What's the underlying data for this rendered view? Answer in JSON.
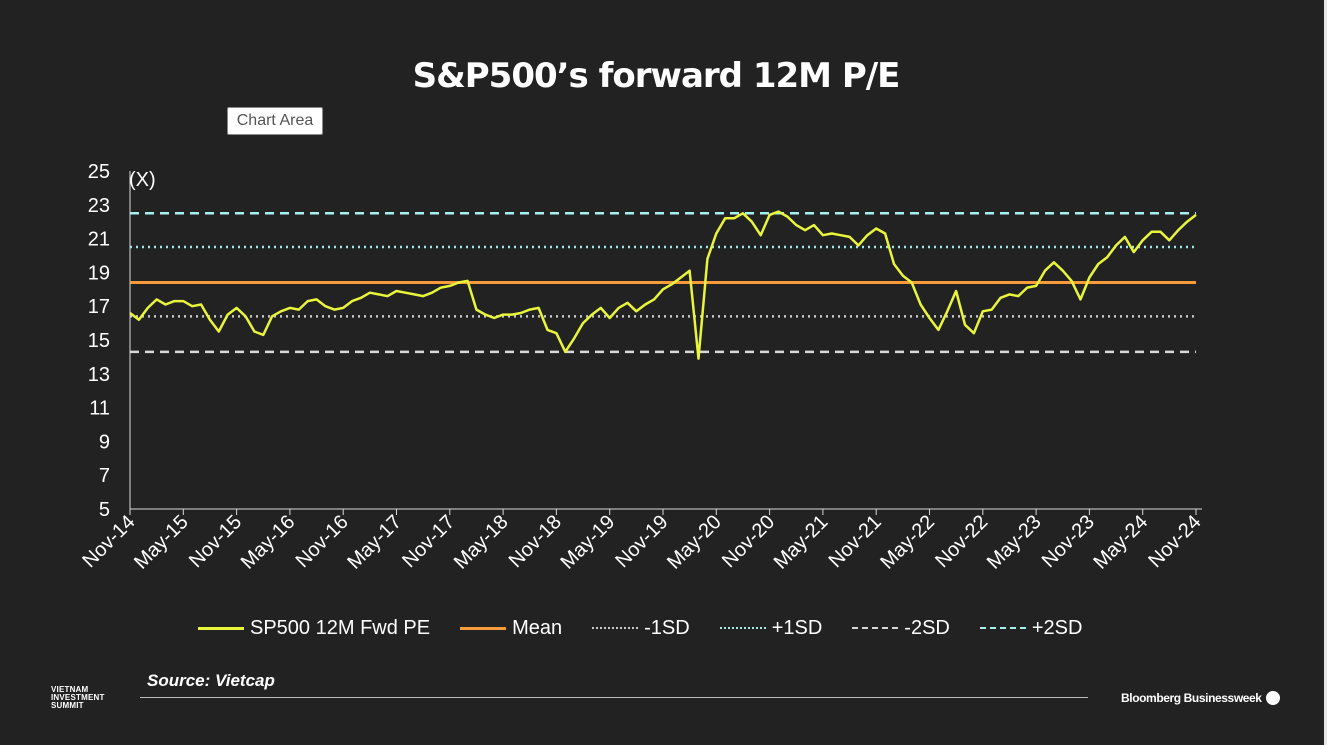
{
  "title": "S&P500’s forward 12M P/E",
  "tooltip": "Chart Area",
  "source": "Source: Vietcap",
  "footer": {
    "left_logo_lines": [
      "VIETNAM",
      "INVESTMENT",
      "SUMMIT"
    ],
    "right_logo": "Bloomberg Businessweek"
  },
  "chart_data": {
    "type": "line",
    "ylabel": "(X)",
    "ylim": [
      5,
      25
    ],
    "yticks": [
      25,
      23,
      21,
      19,
      17,
      15,
      13,
      11,
      9,
      7,
      5
    ],
    "xrange": [
      "2014-11",
      "2024-11"
    ],
    "xtick_labels": [
      "Nov-14",
      "May-15",
      "Nov-15",
      "May-16",
      "Nov-16",
      "May-17",
      "Nov-17",
      "May-18",
      "Nov-18",
      "May-19",
      "Nov-19",
      "May-20",
      "Nov-20",
      "May-21",
      "Nov-21",
      "May-22",
      "Nov-22",
      "May-23",
      "Nov-23",
      "May-24",
      "Nov-24"
    ],
    "grid": false,
    "legend_position": "bottom",
    "series": [
      {
        "name": "SP500 12M Fwd PE",
        "color": "#e8f53a",
        "style": "solid",
        "points": [
          [
            "2014-11",
            16.6
          ],
          [
            "2014-12",
            16.2
          ],
          [
            "2015-01",
            16.9
          ],
          [
            "2015-02",
            17.4
          ],
          [
            "2015-03",
            17.1
          ],
          [
            "2015-04",
            17.3
          ],
          [
            "2015-05",
            17.3
          ],
          [
            "2015-06",
            17.0
          ],
          [
            "2015-07",
            17.1
          ],
          [
            "2015-08",
            16.2
          ],
          [
            "2015-09",
            15.5
          ],
          [
            "2015-10",
            16.5
          ],
          [
            "2015-11",
            16.9
          ],
          [
            "2015-12",
            16.4
          ],
          [
            "2016-01",
            15.5
          ],
          [
            "2016-02",
            15.3
          ],
          [
            "2016-03",
            16.4
          ],
          [
            "2016-04",
            16.7
          ],
          [
            "2016-05",
            16.9
          ],
          [
            "2016-06",
            16.8
          ],
          [
            "2016-07",
            17.3
          ],
          [
            "2016-08",
            17.4
          ],
          [
            "2016-09",
            17.0
          ],
          [
            "2016-10",
            16.8
          ],
          [
            "2016-11",
            16.9
          ],
          [
            "2016-12",
            17.3
          ],
          [
            "2017-01",
            17.5
          ],
          [
            "2017-02",
            17.8
          ],
          [
            "2017-03",
            17.7
          ],
          [
            "2017-04",
            17.6
          ],
          [
            "2017-05",
            17.9
          ],
          [
            "2017-06",
            17.8
          ],
          [
            "2017-07",
            17.7
          ],
          [
            "2017-08",
            17.6
          ],
          [
            "2017-09",
            17.8
          ],
          [
            "2017-10",
            18.1
          ],
          [
            "2017-11",
            18.2
          ],
          [
            "2017-12",
            18.4
          ],
          [
            "2018-01",
            18.5
          ],
          [
            "2018-02",
            16.8
          ],
          [
            "2018-03",
            16.5
          ],
          [
            "2018-04",
            16.3
          ],
          [
            "2018-05",
            16.5
          ],
          [
            "2018-06",
            16.5
          ],
          [
            "2018-07",
            16.6
          ],
          [
            "2018-08",
            16.8
          ],
          [
            "2018-09",
            16.9
          ],
          [
            "2018-10",
            15.6
          ],
          [
            "2018-11",
            15.4
          ],
          [
            "2018-12",
            14.3
          ],
          [
            "2019-01",
            15.1
          ],
          [
            "2019-02",
            16.0
          ],
          [
            "2019-03",
            16.5
          ],
          [
            "2019-04",
            16.9
          ],
          [
            "2019-05",
            16.3
          ],
          [
            "2019-06",
            16.9
          ],
          [
            "2019-07",
            17.2
          ],
          [
            "2019-08",
            16.7
          ],
          [
            "2019-09",
            17.1
          ],
          [
            "2019-10",
            17.4
          ],
          [
            "2019-11",
            18.0
          ],
          [
            "2019-12",
            18.3
          ],
          [
            "2020-01",
            18.7
          ],
          [
            "2020-02",
            19.1
          ],
          [
            "2020-03",
            13.9
          ],
          [
            "2020-04",
            19.8
          ],
          [
            "2020-05",
            21.3
          ],
          [
            "2020-06",
            22.2
          ],
          [
            "2020-07",
            22.2
          ],
          [
            "2020-08",
            22.5
          ],
          [
            "2020-09",
            22.0
          ],
          [
            "2020-10",
            21.2
          ],
          [
            "2020-11",
            22.4
          ],
          [
            "2020-12",
            22.6
          ],
          [
            "2021-01",
            22.3
          ],
          [
            "2021-02",
            21.8
          ],
          [
            "2021-03",
            21.5
          ],
          [
            "2021-04",
            21.8
          ],
          [
            "2021-05",
            21.2
          ],
          [
            "2021-06",
            21.3
          ],
          [
            "2021-07",
            21.2
          ],
          [
            "2021-08",
            21.1
          ],
          [
            "2021-09",
            20.6
          ],
          [
            "2021-10",
            21.2
          ],
          [
            "2021-11",
            21.6
          ],
          [
            "2021-12",
            21.3
          ],
          [
            "2022-01",
            19.5
          ],
          [
            "2022-02",
            18.8
          ],
          [
            "2022-03",
            18.4
          ],
          [
            "2022-04",
            17.1
          ],
          [
            "2022-05",
            16.3
          ],
          [
            "2022-06",
            15.6
          ],
          [
            "2022-07",
            16.7
          ],
          [
            "2022-08",
            17.9
          ],
          [
            "2022-09",
            15.9
          ],
          [
            "2022-10",
            15.4
          ],
          [
            "2022-11",
            16.7
          ],
          [
            "2022-12",
            16.8
          ],
          [
            "2023-01",
            17.5
          ],
          [
            "2023-02",
            17.7
          ],
          [
            "2023-03",
            17.6
          ],
          [
            "2023-04",
            18.1
          ],
          [
            "2023-05",
            18.2
          ],
          [
            "2023-06",
            19.1
          ],
          [
            "2023-07",
            19.6
          ],
          [
            "2023-08",
            19.1
          ],
          [
            "2023-09",
            18.5
          ],
          [
            "2023-10",
            17.4
          ],
          [
            "2023-11",
            18.7
          ],
          [
            "2023-12",
            19.5
          ],
          [
            "2024-01",
            19.9
          ],
          [
            "2024-02",
            20.6
          ],
          [
            "2024-03",
            21.1
          ],
          [
            "2024-04",
            20.2
          ],
          [
            "2024-05",
            20.9
          ],
          [
            "2024-06",
            21.4
          ],
          [
            "2024-07",
            21.4
          ],
          [
            "2024-08",
            20.9
          ],
          [
            "2024-09",
            21.5
          ],
          [
            "2024-10",
            22.0
          ],
          [
            "2024-11",
            22.4
          ]
        ]
      },
      {
        "name": "Mean",
        "color": "#f79a3a",
        "style": "solid",
        "value": 18.4
      },
      {
        "name": "-1SD",
        "color": "#c8c8c8",
        "style": "dotted",
        "value": 16.4
      },
      {
        "name": "+1SD",
        "color": "#9ee8e8",
        "style": "dotted",
        "value": 20.5
      },
      {
        "name": "-2SD",
        "color": "#d8d8d8",
        "style": "dashed",
        "value": 14.3
      },
      {
        "name": "+2SD",
        "color": "#a7f0f0",
        "style": "dashed",
        "value": 22.5
      }
    ]
  }
}
